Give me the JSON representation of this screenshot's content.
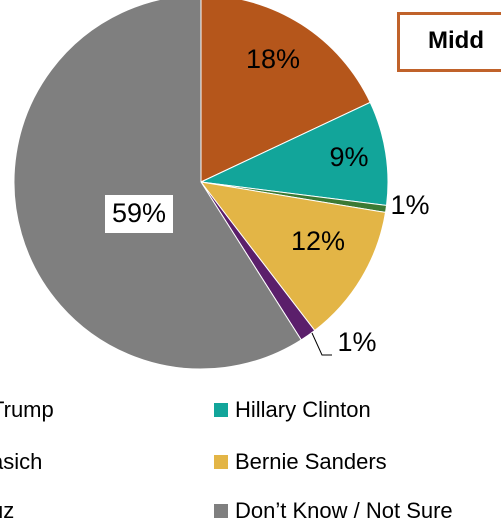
{
  "chart_data": {
    "type": "pie",
    "title": "Midd",
    "slices": [
      {
        "name": "Trump",
        "value": 18,
        "label": "18%",
        "color": "#b5561b"
      },
      {
        "name": "Hillary Clinton",
        "value": 9,
        "label": "9%",
        "color": "#12a59a"
      },
      {
        "name": "",
        "value": 0.6,
        "label": "1%",
        "color": "#3c7a34"
      },
      {
        "name": "Bernie Sanders",
        "value": 12,
        "label": "12%",
        "color": "#e3b546"
      },
      {
        "name": "asich",
        "value": 1.4,
        "label": "1%",
        "color": "#5b1f6b"
      },
      {
        "name": "Don’t Know / Not Sure",
        "value": 59,
        "label": "59%",
        "color": "#7f7f7f"
      }
    ],
    "legend": {
      "placement": "bottom",
      "entries": [
        {
          "label": "Trump",
          "color": "#b5561b"
        },
        {
          "label": "Hillary Clinton",
          "color": "#12a59a"
        },
        {
          "label": "asich",
          "color": "#5b1f6b"
        },
        {
          "label": "Bernie Sanders",
          "color": "#e3b546"
        },
        {
          "label": "uz",
          "color": "#3c7a34"
        },
        {
          "label": "Don’t Know / Not Sure",
          "color": "#7f7f7f"
        }
      ]
    }
  }
}
